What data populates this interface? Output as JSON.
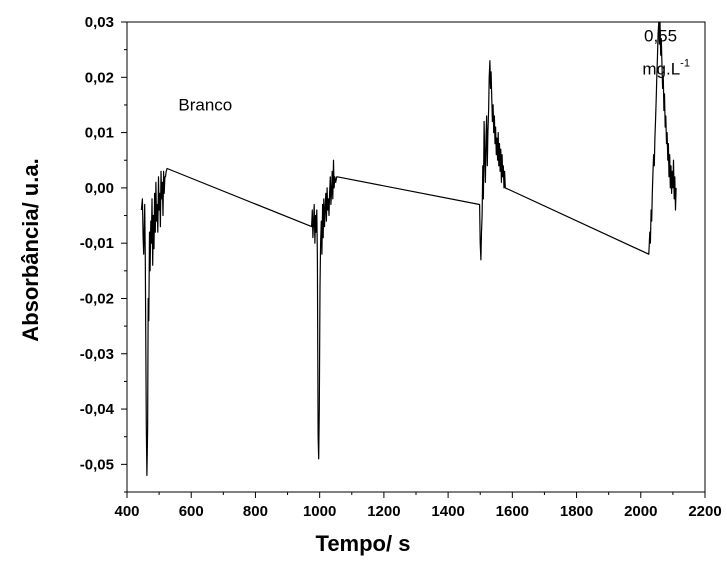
{
  "chart_data": {
    "type": "line",
    "title": "",
    "xlabel": "Tempo/ s",
    "ylabel": "Absorbância/ u.a.",
    "xlim": [
      400,
      2200
    ],
    "ylim": [
      -0.055,
      0.03
    ],
    "x_ticks": [
      400,
      600,
      800,
      1000,
      1200,
      1400,
      1600,
      1800,
      2000,
      2200
    ],
    "x_tick_labels": [
      "400",
      "600",
      "800",
      "1000",
      "1200",
      "1400",
      "1600",
      "1800",
      "2000",
      "2200"
    ],
    "y_ticks": [
      0.03,
      0.02,
      0.01,
      0.0,
      -0.01,
      -0.02,
      -0.03,
      -0.04,
      -0.05
    ],
    "y_tick_labels": [
      "0,03",
      "0,02",
      "0,01",
      "0,00",
      "-0,01",
      "-0,02",
      "-0,03",
      "-0,04",
      "-0,05"
    ],
    "grid": false,
    "annotations": [
      {
        "text": "Branco",
        "x": 560,
        "y": 0.014
      },
      {
        "text": "0,55",
        "x": 2010,
        "y": 0.0265
      },
      {
        "text": "mg.L",
        "sup": "-1",
        "x": 2005,
        "y": 0.0205
      }
    ],
    "series": [
      {
        "color": "#000000",
        "x": [
          445,
          448,
          450,
          452,
          455,
          457,
          460,
          462,
          464,
          466,
          468,
          470,
          472,
          474,
          476,
          478,
          480,
          482,
          484,
          486,
          488,
          490,
          492,
          494,
          496,
          498,
          500,
          502,
          504,
          506,
          508,
          510,
          512,
          514,
          516,
          518,
          520,
          522,
          525,
          975,
          977,
          979,
          981,
          983,
          985,
          987,
          989,
          991,
          993,
          995,
          997,
          999,
          1001,
          1003,
          1005,
          1007,
          1009,
          1011,
          1013,
          1015,
          1017,
          1019,
          1021,
          1023,
          1025,
          1027,
          1029,
          1031,
          1033,
          1035,
          1037,
          1039,
          1041,
          1043,
          1045,
          1047,
          1050,
          1053,
          1055,
          1498,
          1500,
          1502,
          1504,
          1506,
          1508,
          1510,
          1512,
          1514,
          1516,
          1518,
          1520,
          1522,
          1524,
          1526,
          1528,
          1530,
          1532,
          1534,
          1536,
          1538,
          1540,
          1542,
          1544,
          1546,
          1548,
          1550,
          1552,
          1554,
          1556,
          1558,
          1560,
          1562,
          1564,
          1566,
          1568,
          1570,
          1572,
          1574,
          1576,
          1578,
          2025,
          2028,
          2030,
          2032,
          2034,
          2036,
          2038,
          2040,
          2042,
          2044,
          2046,
          2048,
          2050,
          2052,
          2054,
          2056,
          2058,
          2060,
          2062,
          2064,
          2066,
          2068,
          2070,
          2072,
          2074,
          2076,
          2078,
          2080,
          2082,
          2084,
          2086,
          2088,
          2090,
          2092,
          2094,
          2096,
          2098,
          2100,
          2102,
          2104,
          2106,
          2108,
          2110
        ],
        "y": [
          -0.004,
          -0.002,
          -0.009,
          -0.012,
          -0.003,
          -0.013,
          -0.043,
          -0.052,
          -0.044,
          -0.02,
          -0.024,
          -0.008,
          -0.015,
          -0.006,
          -0.01,
          -0.002,
          -0.014,
          -0.005,
          -0.011,
          -0.001,
          -0.008,
          0.001,
          -0.006,
          -0.003,
          -0.008,
          0.002,
          -0.004,
          -0.001,
          -0.007,
          0.003,
          -0.002,
          0.001,
          -0.005,
          0.003,
          -0.001,
          0.002,
          0.002,
          0.003,
          0.0035,
          -0.007,
          -0.004,
          -0.009,
          -0.006,
          -0.003,
          -0.01,
          -0.005,
          -0.008,
          -0.004,
          -0.013,
          -0.045,
          -0.049,
          -0.04,
          -0.018,
          -0.01,
          -0.006,
          -0.012,
          -0.003,
          -0.009,
          -0.002,
          -0.007,
          -0.004,
          -0.001,
          -0.006,
          0.0,
          -0.004,
          -0.002,
          -0.005,
          -0.001,
          0.002,
          -0.003,
          -0.001,
          0.003,
          -0.002,
          0.005,
          0.0,
          0.002,
          0.001,
          0.002,
          0.002,
          -0.003,
          -0.01,
          -0.013,
          -0.008,
          -0.005,
          0.004,
          -0.002,
          0.012,
          0.006,
          0.001,
          0.009,
          0.013,
          0.004,
          0.01,
          0.014,
          0.02,
          0.023,
          0.018,
          0.021,
          0.016,
          0.012,
          0.015,
          0.01,
          0.013,
          0.008,
          0.011,
          0.006,
          0.009,
          0.005,
          0.01,
          0.004,
          0.008,
          0.003,
          0.007,
          0.001,
          0.006,
          0.002,
          0.004,
          0.0,
          0.003,
          0.0,
          -0.012,
          -0.008,
          -0.01,
          -0.004,
          -0.006,
          -0.001,
          0.003,
          0.006,
          0.004,
          0.009,
          0.012,
          0.016,
          0.02,
          0.024,
          0.028,
          0.03,
          0.026,
          0.03,
          0.024,
          0.027,
          0.022,
          0.018,
          0.02,
          0.014,
          0.017,
          0.011,
          0.013,
          0.008,
          0.01,
          0.005,
          0.008,
          0.002,
          0.006,
          0.0,
          0.004,
          -0.001,
          0.003,
          0.0,
          0.005,
          -0.002,
          0.002,
          -0.004,
          0.0
        ]
      }
    ]
  }
}
